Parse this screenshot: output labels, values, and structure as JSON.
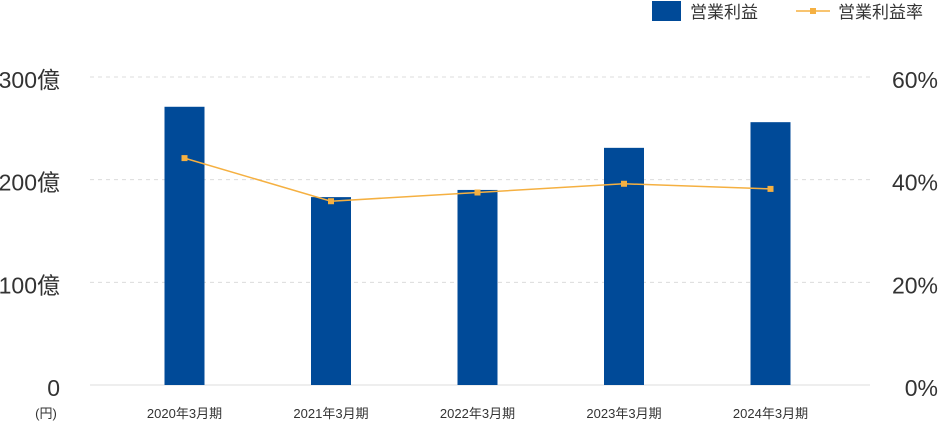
{
  "chart_data": {
    "type": "bar",
    "categories": [
      "2020年3月期",
      "2021年3月期",
      "2022年3月期",
      "2023年3月期",
      "2024年3月期"
    ],
    "series": [
      {
        "name": "営業利益",
        "type": "bar",
        "axis": "left",
        "color": "#004a98",
        "values": [
          271,
          183,
          190,
          231,
          256
        ]
      },
      {
        "name": "営業利益率",
        "type": "line",
        "axis": "right",
        "color": "#f5b041",
        "values": [
          44.2,
          35.8,
          37.5,
          39.2,
          38.2
        ]
      }
    ],
    "y_left": {
      "ylim": [
        0,
        300
      ],
      "ticks": [
        0,
        100,
        200,
        300
      ],
      "tick_labels": [
        "0",
        "100億",
        "200億",
        "300億"
      ],
      "unit_label": "(円)"
    },
    "y_right": {
      "ylim": [
        0,
        60
      ],
      "ticks": [
        0,
        20,
        40,
        60
      ],
      "tick_labels": [
        "0%",
        "20%",
        "40%",
        "60%"
      ]
    },
    "grid": true,
    "grid_style": "dashed",
    "legend_position": "top-right"
  }
}
